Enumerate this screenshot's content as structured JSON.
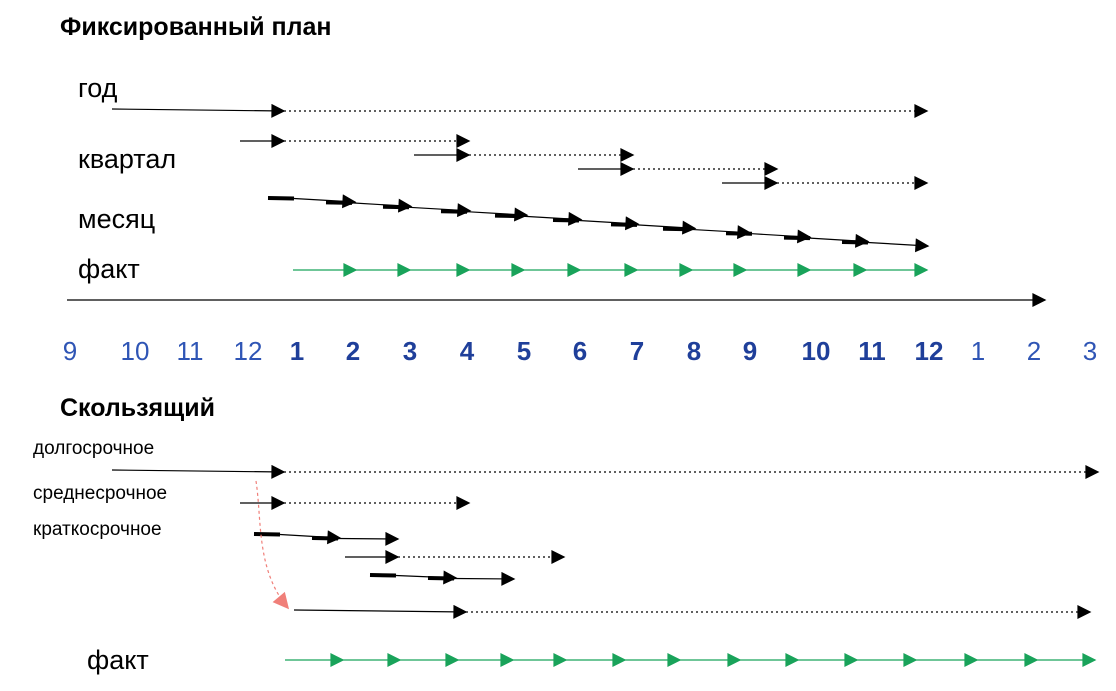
{
  "colors": {
    "line": "#000000",
    "fact": "#19a35a",
    "tick_outside": "#2f55b5",
    "tick_inside": "#1f3f9a",
    "transition": "#f07f79"
  },
  "fixed": {
    "title": "Фиксированный план",
    "labels": {
      "year": "год",
      "quarter": "квартал",
      "month": "месяц",
      "fact": "факт"
    }
  },
  "timeline": {
    "ticks": [
      {
        "label": "9",
        "bold": false
      },
      {
        "label": "10",
        "bold": false
      },
      {
        "label": "11",
        "bold": false
      },
      {
        "label": "12",
        "bold": false
      },
      {
        "label": "1",
        "bold": true
      },
      {
        "label": "2",
        "bold": true
      },
      {
        "label": "3",
        "bold": true
      },
      {
        "label": "4",
        "bold": true
      },
      {
        "label": "5",
        "bold": true
      },
      {
        "label": "6",
        "bold": true
      },
      {
        "label": "7",
        "bold": true
      },
      {
        "label": "8",
        "bold": true
      },
      {
        "label": "9",
        "bold": true
      },
      {
        "label": "10",
        "bold": true
      },
      {
        "label": "11",
        "bold": true
      },
      {
        "label": "12",
        "bold": true
      },
      {
        "label": "1",
        "bold": false
      },
      {
        "label": "2",
        "bold": false
      },
      {
        "label": "3",
        "bold": false
      }
    ]
  },
  "sliding": {
    "title": "Скользящий",
    "labels": {
      "long_term": "долгосрочное",
      "mid_term": "среднесрочное",
      "short_term": "краткосрочное",
      "fact": "факт"
    }
  }
}
